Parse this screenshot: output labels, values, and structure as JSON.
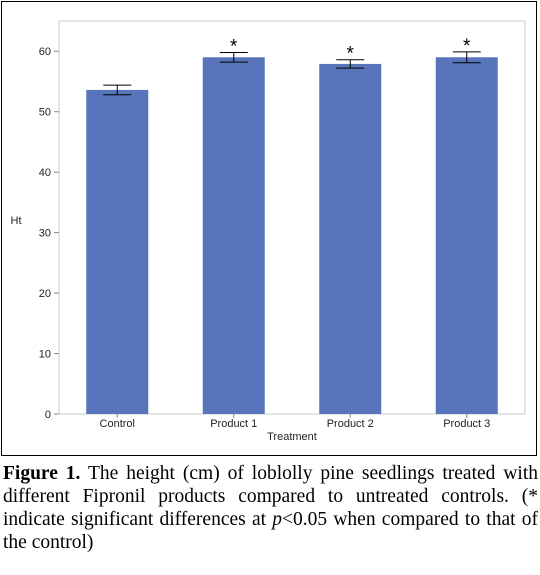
{
  "chart_data": {
    "type": "bar",
    "categories": [
      "Control",
      "Product 1",
      "Product 2",
      "Product 3"
    ],
    "values": [
      53.6,
      59.0,
      57.9,
      59.0
    ],
    "error_bars": [
      0.8,
      0.8,
      0.7,
      0.9
    ],
    "significance": [
      "",
      "*",
      "*",
      "*"
    ],
    "xlabel": "Treatment",
    "ylabel": "Ht",
    "ylim": [
      0,
      65
    ],
    "yticks": [
      0,
      10,
      20,
      30,
      40,
      50,
      60
    ],
    "bar_color": "#5874bb",
    "grid": false
  },
  "caption": {
    "label": "Figure 1.",
    "text1": " The height (cm) of loblolly pine seedlings treated with different Fipronil products compared to untreated controls. (* indicate significant differences at ",
    "p": "p",
    "text2": "<0.05 when compared to that of the control)"
  }
}
